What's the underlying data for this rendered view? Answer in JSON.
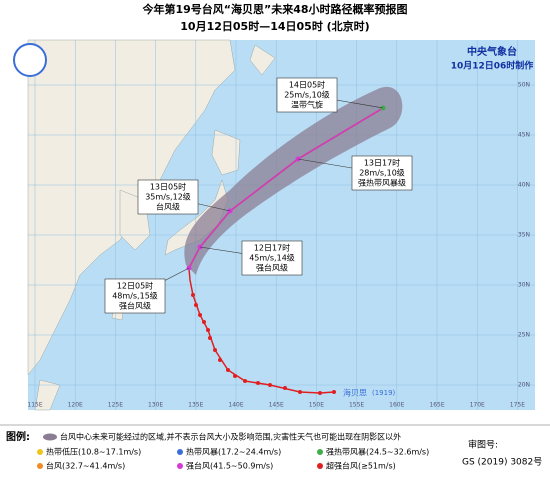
{
  "header": {
    "title": "今年第19号台风“海贝思”未来48小时路径概率预报图",
    "subtitle": "10月12日05时—14日05时 (北京时)"
  },
  "agency": {
    "name": "中央气象台",
    "issued": "10月12日06时制作"
  },
  "typhoon": {
    "name": "海贝思",
    "code": "(1919)"
  },
  "forecast_points": [
    {
      "time": "14日05时",
      "wind": "25m/s,10级",
      "category": "温带气旋"
    },
    {
      "time": "13日17时",
      "wind": "28m/s,10级",
      "category": "强热带风暴级"
    },
    {
      "time": "13日05时",
      "wind": "35m/s,12级",
      "category": "台风级"
    },
    {
      "time": "12日17时",
      "wind": "45m/s,14级",
      "category": "强台风级"
    },
    {
      "time": "12日05时",
      "wind": "48m/s,15级",
      "category": "强台风级"
    }
  ],
  "lon_labels": [
    "115E",
    "120E",
    "125E",
    "130E",
    "135E",
    "140E",
    "145E",
    "150E",
    "155E",
    "160E",
    "165E",
    "170E",
    "175E"
  ],
  "lat_labels": [
    "50N",
    "45N",
    "40N",
    "35N",
    "30N",
    "25N",
    "20N"
  ],
  "legend": {
    "title": "图例:",
    "area": "台风中心未来可能经过的区域,并不表示台风大小及影响范围,灾害性天气也可能出现在阴影区以外",
    "items": [
      {
        "label": "热带低压(10.8~17.1m/s)",
        "color": "#f0c419"
      },
      {
        "label": "热带风暴(17.2~24.4m/s)",
        "color": "#3a6fd8"
      },
      {
        "label": "强热带风暴(24.5~32.6m/s)",
        "color": "#3fae49"
      },
      {
        "label": "台风(32.7~41.4m/s)",
        "color": "#f08a24"
      },
      {
        "label": "强台风(41.5~50.9m/s)",
        "color": "#d63ad6"
      },
      {
        "label": "超强台风(≥51m/s)",
        "color": "#e02020"
      }
    ]
  },
  "map_approval": {
    "label": "审图号:",
    "number": "GS (2019) 3082号"
  }
}
